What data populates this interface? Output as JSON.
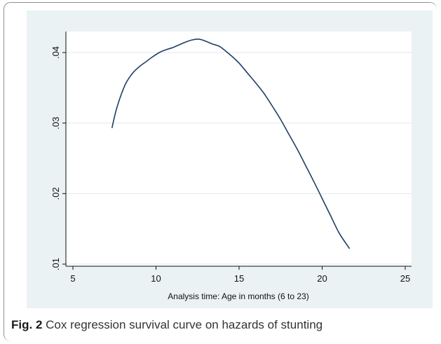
{
  "chart_data": {
    "type": "line",
    "title": "",
    "xlabel": "Analysis time: Age in months (6 to 23)",
    "ylabel": "",
    "xlim": [
      5,
      25
    ],
    "ylim": [
      0.01,
      0.042
    ],
    "x_ticks": [
      5,
      10,
      15,
      20,
      25
    ],
    "x_tick_labels": [
      "5",
      "10",
      "15",
      "20",
      "25"
    ],
    "y_ticks": [
      0.01,
      0.02,
      0.03,
      0.04
    ],
    "y_tick_labels": [
      ".01",
      ".02",
      ".03",
      ".04"
    ],
    "grid": "horizontal",
    "series": [
      {
        "name": "",
        "color": "#1f3f66",
        "x": [
          7.35,
          7.6,
          7.9,
          8.2,
          8.6,
          9.0,
          9.4,
          9.8,
          10.2,
          10.6,
          11.0,
          11.4,
          11.8,
          12.2,
          12.6,
          13.0,
          13.4,
          13.8,
          14.2,
          14.6,
          15.0,
          15.5,
          16.0,
          16.5,
          17.0,
          17.5,
          18.0,
          18.5,
          19.0,
          19.5,
          20.0,
          20.5,
          21.0,
          21.5,
          21.65
        ],
        "y": [
          0.0293,
          0.0318,
          0.034,
          0.0357,
          0.0371,
          0.038,
          0.0387,
          0.0394,
          0.04,
          0.0404,
          0.0407,
          0.0411,
          0.0415,
          0.0418,
          0.0419,
          0.0416,
          0.0412,
          0.0409,
          0.0402,
          0.0394,
          0.0385,
          0.0371,
          0.0357,
          0.0342,
          0.0324,
          0.0305,
          0.0284,
          0.0263,
          0.024,
          0.0217,
          0.0193,
          0.0169,
          0.0145,
          0.0127,
          0.0122
        ]
      }
    ]
  },
  "caption": {
    "label": "Fig. 2",
    "text": " Cox regression survival curve on hazards of stunting"
  }
}
